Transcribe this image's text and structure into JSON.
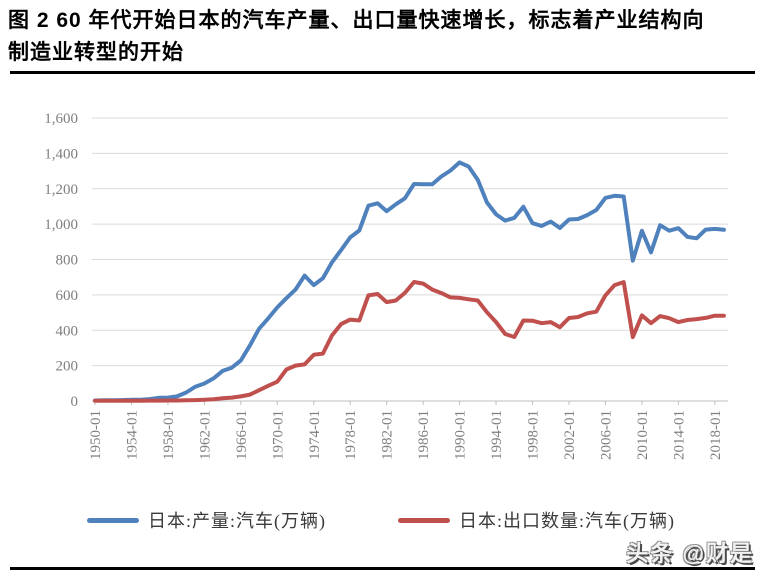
{
  "title": {
    "line1": "图 2 60 年代开始日本的汽车产量、出口量快速增长，标志着产业结构向",
    "line2": "制造业转型的开始"
  },
  "watermark": "头条 @财是",
  "chart_data": {
    "type": "line",
    "title": "",
    "xlabel": "",
    "ylabel": "",
    "ylim": [
      0,
      1600
    ],
    "grid": "horizontal",
    "legend_position": "bottom",
    "y_ticks": [
      0,
      200,
      400,
      600,
      800,
      1000,
      1200,
      1400,
      1600
    ],
    "x_tick_labels": [
      "1950-01",
      "1954-01",
      "1958-01",
      "1962-01",
      "1966-01",
      "1970-01",
      "1974-01",
      "1978-01",
      "1982-01",
      "1986-01",
      "1990-01",
      "1994-01",
      "1998-01",
      "2002-01",
      "2006-01",
      "2010-01",
      "2014-01",
      "2018-01"
    ],
    "x": [
      1950,
      1951,
      1952,
      1953,
      1954,
      1955,
      1956,
      1957,
      1958,
      1959,
      1960,
      1961,
      1962,
      1963,
      1964,
      1965,
      1966,
      1967,
      1968,
      1969,
      1970,
      1971,
      1972,
      1973,
      1974,
      1975,
      1976,
      1977,
      1978,
      1979,
      1980,
      1981,
      1982,
      1983,
      1984,
      1985,
      1986,
      1987,
      1988,
      1989,
      1990,
      1991,
      1992,
      1993,
      1994,
      1995,
      1996,
      1997,
      1998,
      1999,
      2000,
      2001,
      2002,
      2003,
      2004,
      2005,
      2006,
      2007,
      2008,
      2009,
      2010,
      2011,
      2012,
      2013,
      2014,
      2015,
      2016,
      2017,
      2018,
      2019
    ],
    "series": [
      {
        "name": "日本:产量:汽车(万辆)",
        "color": "#4f81bd",
        "values": [
          3,
          4,
          4,
          5,
          7,
          7,
          11,
          18,
          19,
          26,
          48,
          81,
          99,
          128,
          170,
          188,
          229,
          315,
          409,
          467,
          529,
          581,
          630,
          709,
          655,
          694,
          784,
          853,
          925,
          964,
          1104,
          1118,
          1073,
          1112,
          1146,
          1227,
          1226,
          1225,
          1270,
          1303,
          1349,
          1325,
          1250,
          1123,
          1055,
          1020,
          1035,
          1098,
          1005,
          990,
          1014,
          978,
          1026,
          1029,
          1051,
          1080,
          1148,
          1160,
          1156,
          793,
          962,
          840,
          994,
          963,
          977,
          928,
          920,
          969,
          973,
          968
        ]
      },
      {
        "name": "日本:出口数量:汽车(万辆)",
        "color": "#c0504d",
        "values": [
          1,
          1,
          1,
          1,
          1,
          1,
          2,
          2,
          3,
          3,
          4,
          5,
          7,
          10,
          15,
          19,
          26,
          36,
          61,
          86,
          109,
          178,
          200,
          207,
          262,
          268,
          371,
          435,
          460,
          455,
          597,
          605,
          559,
          568,
          611,
          673,
          664,
          630,
          610,
          586,
          583,
          575,
          568,
          502,
          446,
          379,
          362,
          455,
          454,
          440,
          446,
          417,
          469,
          475,
          496,
          505,
          597,
          655,
          672,
          361,
          484,
          440,
          480,
          468,
          446,
          458,
          463,
          470,
          482,
          482
        ]
      }
    ],
    "axis_color": "#bfbfbf",
    "gridline_color": "#d9d9d9",
    "tick_label_color": "#7f7f7f"
  }
}
